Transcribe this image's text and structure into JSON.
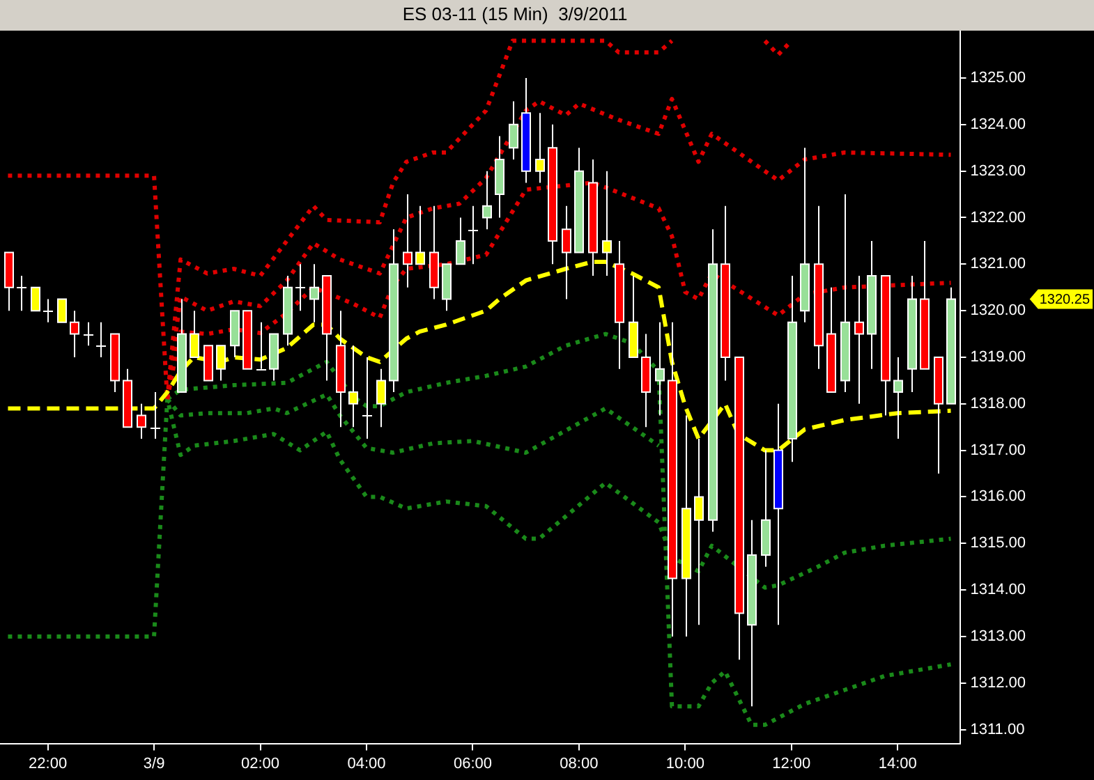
{
  "chart_data": {
    "type": "candlestick",
    "title": "ES 03-11 (15 Min)  3/9/2011",
    "x": [
      "2011-03-08T21:15",
      "2011-03-08T21:30",
      "2011-03-08T21:45",
      "2011-03-08T22:00",
      "2011-03-08T22:15",
      "2011-03-08T22:30",
      "2011-03-08T22:45",
      "2011-03-08T23:00",
      "2011-03-08T23:15",
      "2011-03-08T23:30",
      "2011-03-08T23:45",
      "2011-03-09T00:00",
      "2011-03-09T00:30",
      "2011-03-09T00:45",
      "2011-03-09T01:00",
      "2011-03-09T01:15",
      "2011-03-09T01:30",
      "2011-03-09T01:45",
      "2011-03-09T02:00",
      "2011-03-09T02:15",
      "2011-03-09T02:30",
      "2011-03-09T02:45",
      "2011-03-09T03:00",
      "2011-03-09T03:15",
      "2011-03-09T03:30",
      "2011-03-09T03:45",
      "2011-03-09T04:00",
      "2011-03-09T04:15",
      "2011-03-09T04:30",
      "2011-03-09T04:45",
      "2011-03-09T05:00",
      "2011-03-09T05:15",
      "2011-03-09T05:30",
      "2011-03-09T05:45",
      "2011-03-09T06:00",
      "2011-03-09T06:15",
      "2011-03-09T06:30",
      "2011-03-09T06:45",
      "2011-03-09T07:00",
      "2011-03-09T07:15",
      "2011-03-09T07:30",
      "2011-03-09T07:45",
      "2011-03-09T08:00",
      "2011-03-09T08:15",
      "2011-03-09T08:30",
      "2011-03-09T08:45",
      "2011-03-09T09:00",
      "2011-03-09T09:15",
      "2011-03-09T09:30",
      "2011-03-09T09:45",
      "2011-03-09T10:00",
      "2011-03-09T10:15",
      "2011-03-09T10:30",
      "2011-03-09T10:45",
      "2011-03-09T11:00",
      "2011-03-09T11:15",
      "2011-03-09T11:30",
      "2011-03-09T11:45",
      "2011-03-09T12:00",
      "2011-03-09T12:15",
      "2011-03-09T12:30",
      "2011-03-09T12:45",
      "2011-03-09T13:00",
      "2011-03-09T13:15",
      "2011-03-09T13:30",
      "2011-03-09T13:45",
      "2011-03-09T14:00",
      "2011-03-09T14:15",
      "2011-03-09T14:30",
      "2011-03-09T14:45",
      "2011-03-09T15:00"
    ],
    "ohlc": [
      [
        1321.25,
        1321.25,
        1320,
        1320.5
      ],
      [
        1320.5,
        1320.75,
        1320,
        1320.5
      ],
      [
        1320.5,
        1320.5,
        1320,
        1320
      ],
      [
        1320,
        1320.25,
        1319.75,
        1320
      ],
      [
        1320.25,
        1320.25,
        1319.75,
        1319.75
      ],
      [
        1319.75,
        1320,
        1319,
        1319.5
      ],
      [
        1319.5,
        1319.75,
        1319.25,
        1319.5
      ],
      [
        1319.25,
        1319.75,
        1319,
        1319.25
      ],
      [
        1319.5,
        1319.5,
        1318.25,
        1318.5
      ],
      [
        1318.5,
        1318.75,
        1317.5,
        1317.5
      ],
      [
        1317.75,
        1318,
        1317.25,
        1317.5
      ],
      [
        1317.5,
        1318.25,
        1317.25,
        1317.5
      ],
      [
        1318.25,
        1320.25,
        1318.25,
        1319.5
      ],
      [
        1319.5,
        1320,
        1319,
        1319
      ],
      [
        1319.25,
        1319.25,
        1318.5,
        1318.5
      ],
      [
        1319.25,
        1319.25,
        1318.5,
        1318.75
      ],
      [
        1319.25,
        1320,
        1319,
        1320
      ],
      [
        1320,
        1320,
        1318.75,
        1318.75
      ],
      [
        1318.75,
        1319.75,
        1318.75,
        1318.75
      ],
      [
        1318.75,
        1319.5,
        1318.5,
        1319.5
      ],
      [
        1319.5,
        1320.75,
        1319.25,
        1320.5
      ],
      [
        1320.5,
        1321,
        1320,
        1320.5
      ],
      [
        1320.25,
        1321,
        1319.75,
        1320.5
      ],
      [
        1320.75,
        1320.75,
        1318.5,
        1319.5
      ],
      [
        1319.25,
        1320,
        1317.5,
        1318.25
      ],
      [
        1318.25,
        1319.25,
        1317.5,
        1318
      ],
      [
        1317.75,
        1319,
        1317.25,
        1317.75
      ],
      [
        1318.5,
        1318.75,
        1317.5,
        1318
      ],
      [
        1318.5,
        1321.75,
        1318.25,
        1321
      ],
      [
        1321.25,
        1322.5,
        1320.5,
        1321
      ],
      [
        1321.25,
        1322.25,
        1321,
        1321
      ],
      [
        1321.25,
        1322.25,
        1320.25,
        1320.5
      ],
      [
        1320.25,
        1321,
        1320,
        1321
      ],
      [
        1321,
        1322,
        1321,
        1321.5
      ],
      [
        1321.75,
        1322.25,
        1321,
        1321.75
      ],
      [
        1322,
        1323,
        1321.75,
        1322.25
      ],
      [
        1322.5,
        1323.75,
        1322,
        1323.25
      ],
      [
        1323.5,
        1324.5,
        1323.25,
        1324
      ],
      [
        1324.25,
        1325,
        1322.75,
        1323
      ],
      [
        1323.25,
        1324.25,
        1322.75,
        1323
      ],
      [
        1323.5,
        1324,
        1321,
        1321.5
      ],
      [
        1321.75,
        1322.25,
        1320.25,
        1321.25
      ],
      [
        1321.25,
        1323.5,
        1321.25,
        1323
      ],
      [
        1322.75,
        1323.25,
        1320.75,
        1321.25
      ],
      [
        1321.5,
        1323,
        1320.75,
        1321.25
      ],
      [
        1321,
        1321.5,
        1318.75,
        1319.75
      ],
      [
        1319.75,
        1320.75,
        1319,
        1319
      ],
      [
        1319,
        1319.5,
        1317.5,
        1318.25
      ],
      [
        1318.5,
        1319.75,
        1317.75,
        1318.75
      ],
      [
        1318.5,
        1319.75,
        1313,
        1314.25
      ],
      [
        1315.75,
        1317.75,
        1313,
        1314.25
      ],
      [
        1316,
        1317.25,
        1313.25,
        1315.5
      ],
      [
        1315.5,
        1321.75,
        1315.25,
        1321
      ],
      [
        1321,
        1322.25,
        1318.5,
        1319
      ],
      [
        1319,
        1319,
        1312.5,
        1313.5
      ],
      [
        1313.25,
        1315.5,
        1311.5,
        1314.75
      ],
      [
        1314.75,
        1317,
        1314.5,
        1315.5
      ],
      [
        1317,
        1318,
        1313.25,
        1315.75
      ],
      [
        1317.25,
        1320.75,
        1316.75,
        1319.75
      ],
      [
        1320,
        1323.5,
        1319.75,
        1321
      ],
      [
        1321,
        1322.25,
        1318.75,
        1319.25
      ],
      [
        1319.5,
        1320.5,
        1318.25,
        1318.25
      ],
      [
        1318.5,
        1322.5,
        1318.25,
        1319.75
      ],
      [
        1319.75,
        1320.75,
        1318,
        1319.5
      ],
      [
        1319.5,
        1321.5,
        1318.75,
        1320.75
      ],
      [
        1320.75,
        1320.75,
        1317.75,
        1318.5
      ],
      [
        1318.25,
        1319,
        1317.25,
        1318.5
      ],
      [
        1318.75,
        1320.75,
        1318.25,
        1320.25
      ],
      [
        1320.25,
        1321.5,
        1318.75,
        1318.75
      ],
      [
        1319,
        1319,
        1316.5,
        1318
      ],
      [
        1318,
        1320.5,
        1318,
        1320.25
      ]
    ],
    "colors": [
      "#ff0000",
      "#ffffff",
      "#ffff00",
      "#ffffff",
      "#ffff00",
      "#ff0000",
      "#ffffff",
      "#ffffff",
      "#ff0000",
      "#ff0000",
      "#ff0000",
      "#ffffff",
      "#98e098",
      "#ffff00",
      "#ff0000",
      "#ffff00",
      "#98e098",
      "#ff0000",
      "#ffffff",
      "#98e098",
      "#98e098",
      "#ffffff",
      "#98e098",
      "#ff0000",
      "#ff0000",
      "#ffff00",
      "#ffffff",
      "#ffff00",
      "#98e098",
      "#ff0000",
      "#ffff00",
      "#ff0000",
      "#98e098",
      "#98e098",
      "#ffffff",
      "#98e098",
      "#98e098",
      "#98e098",
      "#0000ff",
      "#ffff00",
      "#ff0000",
      "#ff0000",
      "#98e098",
      "#ff0000",
      "#ffff00",
      "#ff0000",
      "#ffff00",
      "#ff0000",
      "#98e098",
      "#ff0000",
      "#ffff00",
      "#ffff00",
      "#98e098",
      "#ff0000",
      "#ff0000",
      "#98e098",
      "#98e098",
      "#0000ff",
      "#98e098",
      "#98e098",
      "#ff0000",
      "#ff0000",
      "#98e098",
      "#ff0000",
      "#98e098",
      "#ff0000",
      "#98e098",
      "#98e098",
      "#ff0000",
      "#ff0000",
      "#98e098"
    ],
    "series": [
      {
        "type": "line",
        "color": "#ffff00",
        "line_style": "dashed",
        "x": [
          "2011-03-08T21:15",
          "2011-03-09T00:00",
          "2011-03-09T00:15",
          "2011-03-09T00:30",
          "2011-03-09T00:45",
          "2011-03-09T01:15",
          "2011-03-09T01:30",
          "2011-03-09T02:00",
          "2011-03-09T02:30",
          "2011-03-09T03:00",
          "2011-03-09T03:15",
          "2011-03-09T03:30",
          "2011-03-09T04:00",
          "2011-03-09T04:15",
          "2011-03-09T04:45",
          "2011-03-09T05:00",
          "2011-03-09T05:30",
          "2011-03-09T06:15",
          "2011-03-09T06:30",
          "2011-03-09T07:00",
          "2011-03-09T07:45",
          "2011-03-09T08:15",
          "2011-03-09T08:30",
          "2011-03-09T09:00",
          "2011-03-09T09:30",
          "2011-03-09T09:45",
          "2011-03-09T10:00",
          "2011-03-09T10:15",
          "2011-03-09T10:45",
          "2011-03-09T11:00",
          "2011-03-09T11:30",
          "2011-03-09T11:45",
          "2011-03-09T12:15",
          "2011-03-09T13:00",
          "2011-03-09T14:00",
          "2011-03-09T15:00"
        ],
        "values": [
          1317.9,
          1317.9,
          1318.25,
          1318.7,
          1319,
          1318.9,
          1319,
          1318.95,
          1319.2,
          1319.7,
          1319.7,
          1319.4,
          1319,
          1318.9,
          1319.4,
          1319.55,
          1319.7,
          1320,
          1320.25,
          1320.65,
          1320.9,
          1321.05,
          1321.05,
          1320.8,
          1320.5,
          1318.9,
          1317.95,
          1317.25,
          1318,
          1317.35,
          1317,
          1317,
          1317.45,
          1317.65,
          1317.8,
          1317.85
        ]
      },
      {
        "type": "line",
        "color": "#e00000",
        "line_style": "dotted",
        "x": [
          "2011-03-09T00:15",
          "2011-03-09T00:30",
          "2011-03-09T01:00",
          "2011-03-09T01:30",
          "2011-03-09T02:00",
          "2011-03-09T02:30",
          "2011-03-09T03:00",
          "2011-03-09T03:45",
          "2011-03-09T04:15",
          "2011-03-09T04:30",
          "2011-03-09T04:45",
          "2011-03-09T05:30",
          "2011-03-09T06:15",
          "2011-03-09T07:00",
          "2011-03-09T08:15",
          "2011-03-09T08:30",
          "2011-03-09T09:30",
          "2011-03-09T09:45",
          "2011-03-09T10:00",
          "2011-03-09T10:15",
          "2011-03-09T10:30",
          "2011-03-09T11:45",
          "2011-03-09T12:15",
          "2011-03-09T13:00",
          "2011-03-09T15:00"
        ],
        "values": [
          1318.1,
          1319.55,
          1319.5,
          1319.6,
          1319.52,
          1319.95,
          1320.5,
          1320.15,
          1319.85,
          1320.55,
          1320.9,
          1321,
          1321.2,
          1322.6,
          1322.75,
          1322.65,
          1322.2,
          1321.6,
          1320.4,
          1320.25,
          1320.8,
          1319.9,
          1320.35,
          1320.5,
          1320.6
        ]
      },
      {
        "type": "line",
        "color": "#e00000",
        "line_style": "dotted",
        "x": [
          "2011-03-09T00:15",
          "2011-03-09T00:30",
          "2011-03-09T01:00",
          "2011-03-09T01:30",
          "2011-03-09T02:00",
          "2011-03-09T02:30",
          "2011-03-09T03:00",
          "2011-03-09T03:30",
          "2011-03-09T04:15",
          "2011-03-09T04:30",
          "2011-03-09T04:45",
          "2011-03-09T05:15",
          "2011-03-09T05:45",
          "2011-03-09T06:15",
          "2011-03-09T07:00",
          "2011-03-09T07:15",
          "2011-03-09T07:45",
          "2011-03-09T08:00",
          "2011-03-09T08:45",
          "2011-03-09T09:30",
          "2011-03-09T09:45",
          "2011-03-09T10:15",
          "2011-03-09T10:30",
          "2011-03-09T11:45",
          "2011-03-09T12:15",
          "2011-03-09T13:00",
          "2011-03-09T15:00"
        ],
        "values": [
          1318.1,
          1320.3,
          1320,
          1320.2,
          1320.1,
          1320.65,
          1321.45,
          1321.1,
          1320.8,
          1321.4,
          1322,
          1322.2,
          1322.3,
          1322.85,
          1324.3,
          1324.5,
          1324.2,
          1324.45,
          1324.1,
          1323.8,
          1324.55,
          1323.2,
          1323.8,
          1322.8,
          1323.25,
          1323.4,
          1323.35
        ]
      },
      {
        "type": "line",
        "color": "#e00000",
        "line_style": "dotted",
        "x": [
          "2011-03-08T21:15",
          "2011-03-09T00:00",
          "2011-03-09T00:15",
          "2011-03-09T00:30",
          "2011-03-09T01:00",
          "2011-03-09T01:30",
          "2011-03-09T02:00",
          "2011-03-09T03:00",
          "2011-03-09T03:15",
          "2011-03-09T04:15",
          "2011-03-09T04:30",
          "2011-03-09T04:45",
          "2011-03-09T05:15",
          "2011-03-09T05:30",
          "2011-03-09T06:00",
          "2011-03-09T06:15",
          "2011-03-09T06:45",
          "2011-03-09T07:30",
          "2011-03-09T08:30",
          "2011-03-09T08:45",
          "2011-03-09T09:30",
          "2011-03-09T09:45",
          "2011-03-09T10:00",
          "2011-03-09T11:30",
          "2011-03-09T11:45",
          "2011-03-09T12:00"
        ],
        "values": [
          1322.9,
          1322.9,
          1318.1,
          1321.1,
          1320.8,
          1320.9,
          1320.75,
          1322.25,
          1321.95,
          1321.9,
          1322.75,
          1323.2,
          1323.4,
          1323.4,
          1324,
          1324.3,
          1325.8,
          1325.8,
          1325.8,
          1325.55,
          1325.55,
          1325.8,
          null,
          1325.8,
          1325.5,
          1325.8
        ]
      },
      {
        "type": "line",
        "color": "#1a8a1a",
        "line_style": "dotted",
        "x": [
          "2011-03-09T00:15",
          "2011-03-09T00:30",
          "2011-03-09T01:00",
          "2011-03-09T01:30",
          "2011-03-09T02:30",
          "2011-03-09T03:15",
          "2011-03-09T03:45",
          "2011-03-09T04:00",
          "2011-03-09T04:15",
          "2011-03-09T04:45",
          "2011-03-09T05:30",
          "2011-03-09T06:15",
          "2011-03-09T07:00",
          "2011-03-09T07:45",
          "2011-03-09T08:30",
          "2011-03-09T09:00",
          "2011-03-09T09:30",
          "2011-03-09T09:45",
          "2011-03-09T10:15",
          "2011-03-09T10:30",
          "2011-03-09T10:45",
          "2011-03-09T11:15",
          "2011-03-09T11:30",
          "2011-03-09T12:15",
          "2011-03-09T13:00",
          "2011-03-09T13:45",
          "2011-03-09T15:00"
        ],
        "values": [
          1318.1,
          1318.3,
          1318.35,
          1318.4,
          1318.45,
          1318.9,
          1318.15,
          1317.95,
          1317.95,
          1318.25,
          1318.45,
          1318.6,
          1318.8,
          1319.25,
          1319.5,
          1319.3,
          1318.7,
          1311.5,
          1311.5,
          1312,
          1312.25,
          1311.1,
          1311.1,
          1311.55,
          1311.85,
          1312.15,
          1312.4
        ]
      },
      {
        "type": "line",
        "color": "#1a8a1a",
        "line_style": "dotted",
        "x": [
          "2011-03-09T00:15",
          "2011-03-09T00:30",
          "2011-03-09T01:00",
          "2011-03-09T01:45",
          "2011-03-09T02:15",
          "2011-03-09T02:30",
          "2011-03-09T03:15",
          "2011-03-09T03:30",
          "2011-03-09T04:00",
          "2011-03-09T04:30",
          "2011-03-09T05:15",
          "2011-03-09T06:00",
          "2011-03-09T07:00",
          "2011-03-09T08:30",
          "2011-03-09T09:30"
        ],
        "values": [
          1318.1,
          1317.75,
          1317.8,
          1317.8,
          1317.9,
          1317.8,
          1318.2,
          1317.75,
          1317.05,
          1316.95,
          1317.15,
          1317.2,
          1316.95,
          1317.9,
          1317.1
        ]
      },
      {
        "type": "line",
        "color": "#1a8a1a",
        "line_style": "dotted",
        "x": [
          "2011-03-08T21:15",
          "2011-03-09T00:00",
          "2011-03-09T00:15",
          "2011-03-09T00:30",
          "2011-03-09T00:45",
          "2011-03-09T01:30",
          "2011-03-09T02:15",
          "2011-03-09T02:45",
          "2011-03-09T03:15",
          "2011-03-09T03:30",
          "2011-03-09T04:00",
          "2011-03-09T04:15",
          "2011-03-09T04:45",
          "2011-03-09T05:30",
          "2011-03-09T06:15",
          "2011-03-09T07:00",
          "2011-03-09T07:15",
          "2011-03-09T08:30",
          "2011-03-09T09:30",
          "2011-03-09T09:45",
          "2011-03-09T10:15",
          "2011-03-09T10:30",
          "2011-03-09T11:00",
          "2011-03-09T11:30",
          "2011-03-09T11:45",
          "2011-03-09T12:30",
          "2011-03-09T13:00",
          "2011-03-09T13:45",
          "2011-03-09T15:00"
        ],
        "values": [
          1313,
          1313,
          1318.1,
          1316.9,
          1317.1,
          1317.2,
          1317.35,
          1317,
          1317.4,
          1316.8,
          1316,
          1316,
          1315.75,
          1315.9,
          1315.8,
          1315.1,
          1315.1,
          1316.3,
          1315.45,
          1314.7,
          1314.4,
          1314.95,
          1314.5,
          1314.05,
          1314.1,
          1314.5,
          1314.8,
          1314.95,
          1315.1
        ]
      }
    ],
    "xlim": [
      "2011-03-08T21:06",
      "2011-03-09T15:11"
    ],
    "xticks": [
      {
        "value": "2011-03-08T22:00",
        "label": "22:00"
      },
      {
        "value": "2011-03-09T00:00",
        "label": "3/9"
      },
      {
        "value": "2011-03-09T02:00",
        "label": "02:00"
      },
      {
        "value": "2011-03-09T04:00",
        "label": "04:00"
      },
      {
        "value": "2011-03-09T06:00",
        "label": "06:00"
      },
      {
        "value": "2011-03-09T08:00",
        "label": "08:00"
      },
      {
        "value": "2011-03-09T10:00",
        "label": "10:00"
      },
      {
        "value": "2011-03-09T12:00",
        "label": "12:00"
      },
      {
        "value": "2011-03-09T14:00",
        "label": "14:00"
      }
    ],
    "ylim": [
      1310.7,
      1326
    ],
    "yticks": [
      {
        "value": 1311,
        "label": "1311.00"
      },
      {
        "value": 1312,
        "label": "1312.00"
      },
      {
        "value": 1313,
        "label": "1313.00"
      },
      {
        "value": 1314,
        "label": "1314.00"
      },
      {
        "value": 1315,
        "label": "1315.00"
      },
      {
        "value": 1316,
        "label": "1316.00"
      },
      {
        "value": 1317,
        "label": "1317.00"
      },
      {
        "value": 1318,
        "label": "1318.00"
      },
      {
        "value": 1319,
        "label": "1319.00"
      },
      {
        "value": 1320,
        "label": "1320.00"
      },
      {
        "value": 1321,
        "label": "1321.00"
      },
      {
        "value": 1322,
        "label": "1322.00"
      },
      {
        "value": 1323,
        "label": "1323.00"
      },
      {
        "value": 1324,
        "label": "1324.00"
      },
      {
        "value": 1325,
        "label": "1325.00"
      }
    ],
    "annotations": [
      "1320.25"
    ]
  }
}
